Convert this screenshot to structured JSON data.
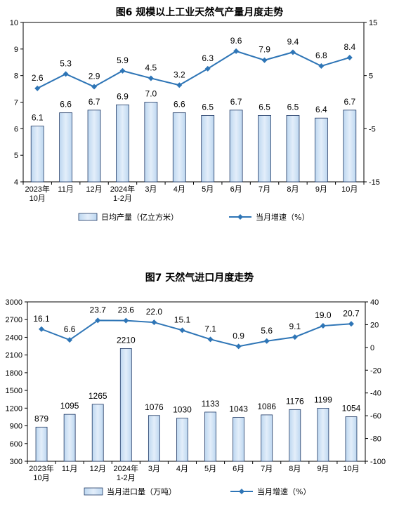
{
  "chart_data": [
    {
      "type": "bar",
      "title": "图6  规模以上工业天然气产量月度走势",
      "categories": [
        [
          "2023年",
          "10月"
        ],
        [
          "11月"
        ],
        [
          "12月"
        ],
        [
          "2024年",
          "1-2月"
        ],
        [
          "3月"
        ],
        [
          "4月"
        ],
        [
          "5月"
        ],
        [
          "6月"
        ],
        [
          "7月"
        ],
        [
          "8月"
        ],
        [
          "9月"
        ],
        [
          "10月"
        ]
      ],
      "series": [
        {
          "name": "日均产量（亿立方米）",
          "type": "bar",
          "axis": "left",
          "values": [
            6.1,
            6.6,
            6.7,
            6.9,
            7.0,
            6.6,
            6.5,
            6.7,
            6.5,
            6.5,
            6.4,
            6.7
          ],
          "labels": [
            "6.1",
            "6.6",
            "6.7",
            "6.9",
            "7.0",
            "6.6",
            "6.5",
            "6.7",
            "6.5",
            "6.5",
            "6.4",
            "6.7"
          ]
        },
        {
          "name": "当月增速（%）",
          "type": "line",
          "axis": "right",
          "values": [
            2.6,
            5.3,
            2.9,
            5.9,
            4.5,
            3.2,
            6.3,
            9.6,
            7.9,
            9.4,
            6.8,
            8.4
          ],
          "labels": [
            "2.6",
            "5.3",
            "2.9",
            "5.9",
            "4.5",
            "3.2",
            "6.3",
            "9.6",
            "7.9",
            "9.4",
            "6.8",
            "8.4"
          ]
        }
      ],
      "ylim_left": [
        4,
        10
      ],
      "yticks_left": [
        4,
        5,
        6,
        7,
        8,
        9,
        10
      ],
      "ylim_right": [
        -15,
        15
      ],
      "yticks_right": [
        -15,
        -5,
        5,
        15
      ],
      "legend": "bottom",
      "grid": false,
      "colors": {
        "bar_fill": "#bdd7f0",
        "bar_fill_light": "#e3eefa",
        "bar_stroke": "#1f3864",
        "line": "#2e75b6"
      }
    },
    {
      "type": "bar",
      "title": "图7  天然气进口月度走势",
      "categories": [
        [
          "2023年",
          "10月"
        ],
        [
          "11月"
        ],
        [
          "12月"
        ],
        [
          "2024年",
          "1-2月"
        ],
        [
          "3月"
        ],
        [
          "4月"
        ],
        [
          "5月"
        ],
        [
          "6月"
        ],
        [
          "7月"
        ],
        [
          "8月"
        ],
        [
          "9月"
        ],
        [
          "10月"
        ]
      ],
      "series": [
        {
          "name": "当月进口量（万吨）",
          "type": "bar",
          "axis": "left",
          "values": [
            879,
            1095,
            1265,
            2210,
            1076,
            1030,
            1133,
            1043,
            1086,
            1176,
            1199,
            1054
          ],
          "labels": [
            "879",
            "1095",
            "1265",
            "2210",
            "1076",
            "1030",
            "1133",
            "1043",
            "1086",
            "1176",
            "1199",
            "1054"
          ]
        },
        {
          "name": "当月增速（%）",
          "type": "line",
          "axis": "right",
          "values": [
            16.1,
            6.6,
            23.7,
            23.6,
            22.0,
            15.1,
            7.1,
            0.9,
            5.6,
            9.1,
            19.0,
            20.7
          ],
          "labels": [
            "16.1",
            "6.6",
            "23.7",
            "23.6",
            "22.0",
            "15.1",
            "7.1",
            "0.9",
            "5.6",
            "9.1",
            "19.0",
            "20.7"
          ]
        }
      ],
      "ylim_left": [
        300,
        3000
      ],
      "yticks_left": [
        300,
        600,
        900,
        1200,
        1500,
        1800,
        2100,
        2400,
        2700,
        3000
      ],
      "ylim_right": [
        -100,
        40
      ],
      "yticks_right": [
        -100,
        -80,
        -60,
        -40,
        -20,
        0,
        20,
        40
      ],
      "legend": "bottom",
      "grid": false,
      "colors": {
        "bar_fill": "#bdd7f0",
        "bar_fill_light": "#e3eefa",
        "bar_stroke": "#1f3864",
        "line": "#2e75b6"
      }
    }
  ]
}
